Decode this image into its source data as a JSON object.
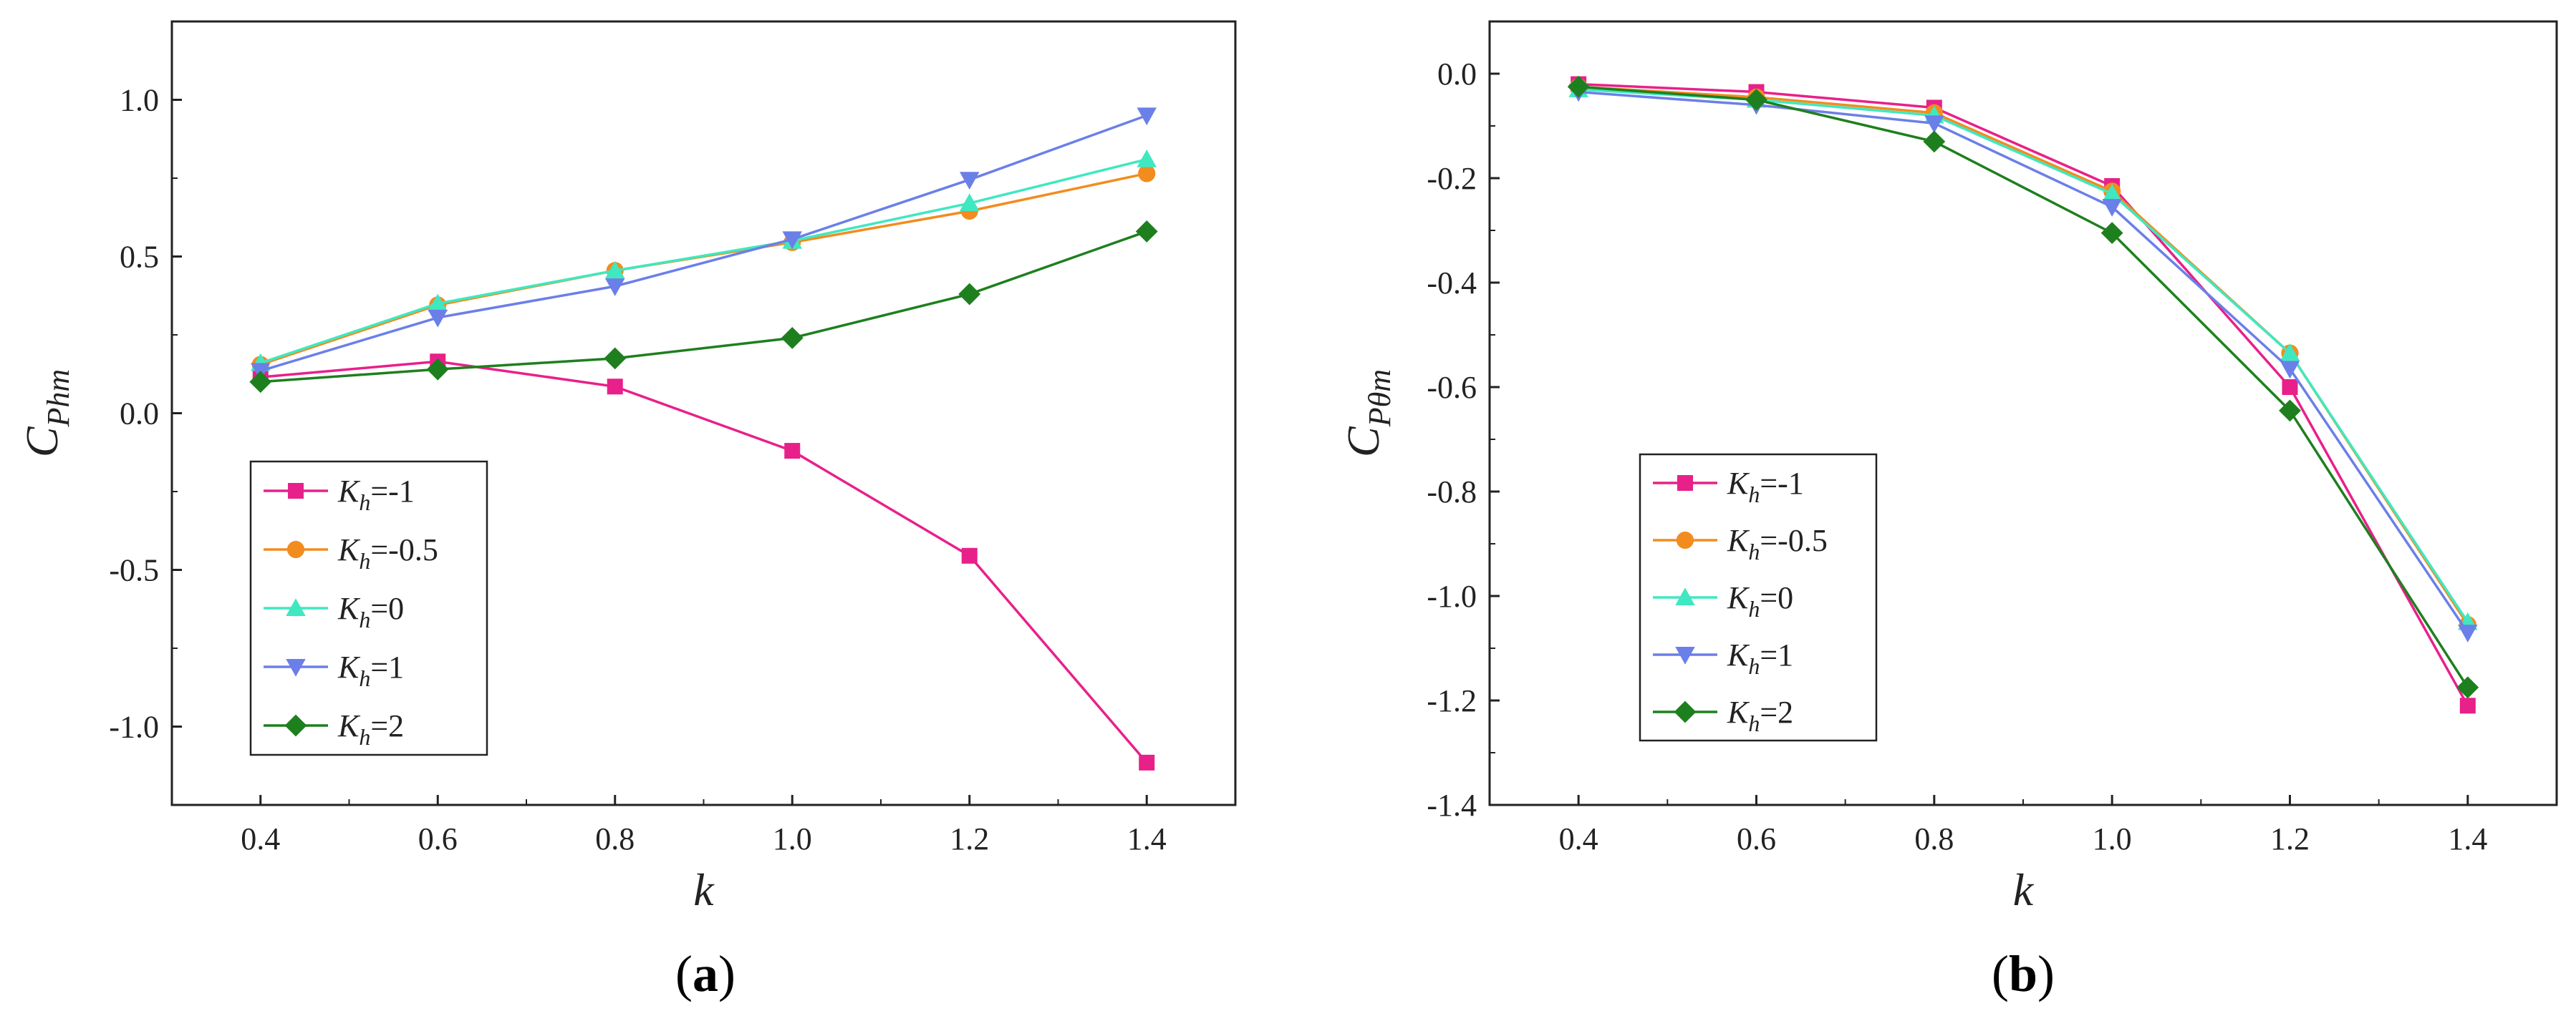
{
  "chart_data": [
    {
      "type": "line",
      "caption": "a",
      "xlabel": "k",
      "ylabel_main": "C",
      "ylabel_sub": "Phm",
      "xlim": [
        0.3,
        1.5
      ],
      "ylim": [
        -1.25,
        1.25
      ],
      "xticks": [
        0.4,
        0.6,
        0.8,
        1.0,
        1.2,
        1.4
      ],
      "xtick_labels": [
        "0.4",
        "0.6",
        "0.8",
        "1.0",
        "1.2",
        "1.4"
      ],
      "yticks": [
        -1.0,
        -0.5,
        0.0,
        0.5,
        1.0
      ],
      "ytick_labels": [
        "-1.0",
        "-0.5",
        "0.0",
        "0.5",
        "1.0"
      ],
      "legend_position": "bottom-left",
      "x": [
        0.4,
        0.6,
        0.8,
        1.0,
        1.2,
        1.4
      ],
      "series": [
        {
          "name": "Kh=-1",
          "label_main": "K",
          "label_sub": "h",
          "label_value": "=-1",
          "color": "#E8208A",
          "marker": "square",
          "values": [
            0.115,
            0.165,
            0.085,
            -0.12,
            -0.455,
            -1.115
          ]
        },
        {
          "name": "Kh=-0.5",
          "label_main": "K",
          "label_sub": "h",
          "label_value": "=-0.5",
          "color": "#F28C1E",
          "marker": "circle",
          "values": [
            0.155,
            0.345,
            0.455,
            0.545,
            0.645,
            0.765
          ]
        },
        {
          "name": "Kh=0",
          "label_main": "K",
          "label_sub": "h",
          "label_value": "=0",
          "color": "#3FE8C0",
          "marker": "triangle-up",
          "values": [
            0.16,
            0.35,
            0.455,
            0.55,
            0.67,
            0.81
          ]
        },
        {
          "name": "Kh=1",
          "label_main": "K",
          "label_sub": "h",
          "label_value": "=1",
          "color": "#6B7FE8",
          "marker": "triangle-down",
          "values": [
            0.135,
            0.305,
            0.405,
            0.555,
            0.745,
            0.95
          ]
        },
        {
          "name": "Kh=2",
          "label_main": "K",
          "label_sub": "h",
          "label_value": "=2",
          "color": "#1E7F1E",
          "marker": "diamond",
          "values": [
            0.1,
            0.14,
            0.175,
            0.24,
            0.38,
            0.58
          ]
        }
      ]
    },
    {
      "type": "line",
      "caption": "b",
      "xlabel": "k",
      "ylabel_main": "C",
      "ylabel_sub": "Pθm",
      "xlim": [
        0.3,
        1.5
      ],
      "ylim": [
        -1.4,
        0.1
      ],
      "xticks": [
        0.4,
        0.6,
        0.8,
        1.0,
        1.2,
        1.4
      ],
      "xtick_labels": [
        "0.4",
        "0.6",
        "0.8",
        "1.0",
        "1.2",
        "1.4"
      ],
      "yticks": [
        -1.4,
        -1.2,
        -1.0,
        -0.8,
        -0.6,
        -0.4,
        -0.2,
        0.0
      ],
      "ytick_labels": [
        "-1.4",
        "-1.2",
        "-1.0",
        "-0.8",
        "-0.6",
        "-0.4",
        "-0.2",
        "0.0"
      ],
      "legend_position": "bottom-left",
      "x": [
        0.4,
        0.6,
        0.8,
        1.0,
        1.2,
        1.4
      ],
      "series": [
        {
          "name": "Kh=-1",
          "label_main": "K",
          "label_sub": "h",
          "label_value": "=-1",
          "color": "#E8208A",
          "marker": "square",
          "values": [
            -0.02,
            -0.035,
            -0.065,
            -0.215,
            -0.6,
            -1.21
          ]
        },
        {
          "name": "Kh=-0.5",
          "label_main": "K",
          "label_sub": "h",
          "label_value": "=-0.5",
          "color": "#F28C1E",
          "marker": "circle",
          "values": [
            -0.025,
            -0.045,
            -0.075,
            -0.225,
            -0.535,
            -1.055
          ]
        },
        {
          "name": "Kh=0",
          "label_main": "K",
          "label_sub": "h",
          "label_value": "=0",
          "color": "#3FE8C0",
          "marker": "triangle-up",
          "values": [
            -0.03,
            -0.05,
            -0.08,
            -0.23,
            -0.535,
            -1.05
          ]
        },
        {
          "name": "Kh=1",
          "label_main": "K",
          "label_sub": "h",
          "label_value": "=1",
          "color": "#6B7FE8",
          "marker": "triangle-down",
          "values": [
            -0.035,
            -0.06,
            -0.095,
            -0.255,
            -0.565,
            -1.07
          ]
        },
        {
          "name": "Kh=2",
          "label_main": "K",
          "label_sub": "h",
          "label_value": "=2",
          "color": "#1E7F1E",
          "marker": "diamond",
          "values": [
            -0.025,
            -0.05,
            -0.13,
            -0.305,
            -0.645,
            -1.175
          ]
        }
      ]
    }
  ]
}
